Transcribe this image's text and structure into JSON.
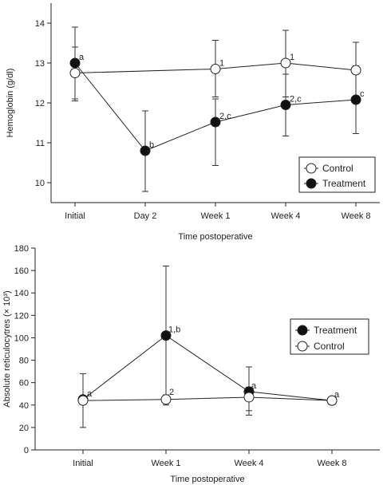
{
  "chart_data": [
    {
      "type": "line",
      "xlabel": "Time postoperative",
      "ylabel": "Hemoglobin (g/dl)",
      "categories": [
        "Initial",
        "Day 2",
        "Week 1",
        "Week 4",
        "Week 8"
      ],
      "ylim": [
        9.5,
        14.5
      ],
      "yticks": [
        10,
        11,
        12,
        13,
        14
      ],
      "legend": {
        "position": "bottom-right",
        "entries": [
          "Control",
          "Treatment"
        ]
      },
      "series": [
        {
          "name": "Control",
          "marker": "open-circle",
          "points": [
            {
              "x": "Initial",
              "y": 12.75,
              "err_low": 12.1,
              "err_high": 13.4,
              "label": ""
            },
            {
              "x": "Week 1",
              "y": 12.85,
              "err_low": 12.15,
              "err_high": 13.57,
              "label": "1"
            },
            {
              "x": "Week 4",
              "y": 13.0,
              "err_low": 12.15,
              "err_high": 13.82,
              "label": "1"
            },
            {
              "x": "Week 8",
              "y": 12.82,
              "err_low": 12.1,
              "err_high": 13.52,
              "label": ""
            }
          ]
        },
        {
          "name": "Treatment",
          "marker": "filled-circle",
          "points": [
            {
              "x": "Initial",
              "y": 13.0,
              "err_low": 12.05,
              "err_high": 13.9,
              "label": "a"
            },
            {
              "x": "Day 2",
              "y": 10.8,
              "err_low": 9.78,
              "err_high": 11.8,
              "label": "b"
            },
            {
              "x": "Week 1",
              "y": 11.52,
              "err_low": 10.43,
              "err_high": 12.1,
              "label": "2,c"
            },
            {
              "x": "Week 4",
              "y": 11.95,
              "err_low": 11.17,
              "err_high": 12.72,
              "label": "2,c"
            },
            {
              "x": "Week 8",
              "y": 12.08,
              "err_low": 11.23,
              "err_high": 12.93,
              "label": "c"
            }
          ]
        }
      ]
    },
    {
      "type": "line",
      "xlabel": "Time postoperative",
      "ylabel": "Absolute reticulocytres (× 10³)",
      "categories": [
        "Initial",
        "Week 1",
        "Week 4",
        "Week 8"
      ],
      "ylim": [
        0,
        180
      ],
      "yticks": [
        0,
        20,
        40,
        60,
        80,
        100,
        120,
        140,
        160,
        180
      ],
      "legend": {
        "position": "right",
        "entries": [
          "Treatment",
          "Control"
        ]
      },
      "series": [
        {
          "name": "Treatment",
          "marker": "filled-circle",
          "points": [
            {
              "x": "Initial",
              "y": 45,
              "err_low": 20,
              "err_high": 68,
              "label": "a"
            },
            {
              "x": "Week 1",
              "y": 102,
              "err_low": 40,
              "err_high": 164,
              "label": "1,b"
            },
            {
              "x": "Week 4",
              "y": 52,
              "err_low": 31,
              "err_high": 74,
              "label": "a"
            },
            {
              "x": "Week 8",
              "y": 44,
              "err_low": 44,
              "err_high": 44,
              "label": "a"
            }
          ]
        },
        {
          "name": "Control",
          "marker": "open-circle",
          "points": [
            {
              "x": "Initial",
              "y": 44,
              "err_low": 44,
              "err_high": 44,
              "label": ""
            },
            {
              "x": "Week 1",
              "y": 45,
              "err_low": 45,
              "err_high": 49,
              "label": "2"
            },
            {
              "x": "Week 4",
              "y": 47,
              "err_low": 35,
              "err_high": 56,
              "label": ""
            },
            {
              "x": "Week 8",
              "y": 44,
              "err_low": 44,
              "err_high": 44,
              "label": ""
            }
          ]
        }
      ]
    }
  ]
}
